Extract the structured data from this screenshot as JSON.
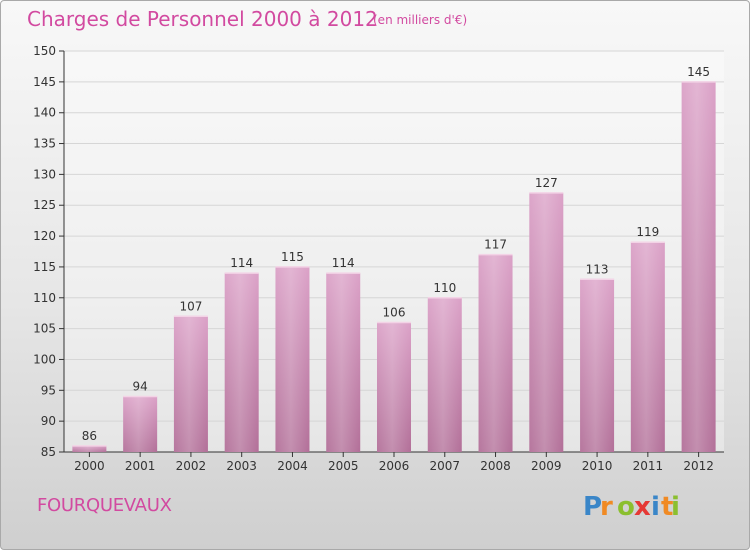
{
  "title": "Charges de Personnel 2000 à 2012",
  "unit_note": "(en milliers d'€)",
  "location": "FOURQUEVAUX",
  "logo_text": "Proxiti",
  "colors": {
    "bar": "#dba1c7",
    "bar_dark": "#b26f98",
    "text": "#d24aa0",
    "axis": "#333333",
    "grid": "#d6d6d6"
  },
  "chart_data": {
    "type": "bar",
    "title": "Charges de Personnel 2000 à 2012",
    "subtitle": "(en milliers d'€)",
    "categories": [
      "2000",
      "2001",
      "2002",
      "2003",
      "2004",
      "2005",
      "2006",
      "2007",
      "2008",
      "2009",
      "2010",
      "2011",
      "2012"
    ],
    "values": [
      86,
      94,
      107,
      114,
      115,
      114,
      106,
      110,
      117,
      127,
      113,
      119,
      145
    ],
    "xlabel": "",
    "ylabel": "",
    "ylim": [
      85,
      150
    ],
    "yticks": [
      85,
      90,
      95,
      100,
      105,
      110,
      115,
      120,
      125,
      130,
      135,
      140,
      145,
      150
    ],
    "grid": true,
    "data_labels": true
  }
}
